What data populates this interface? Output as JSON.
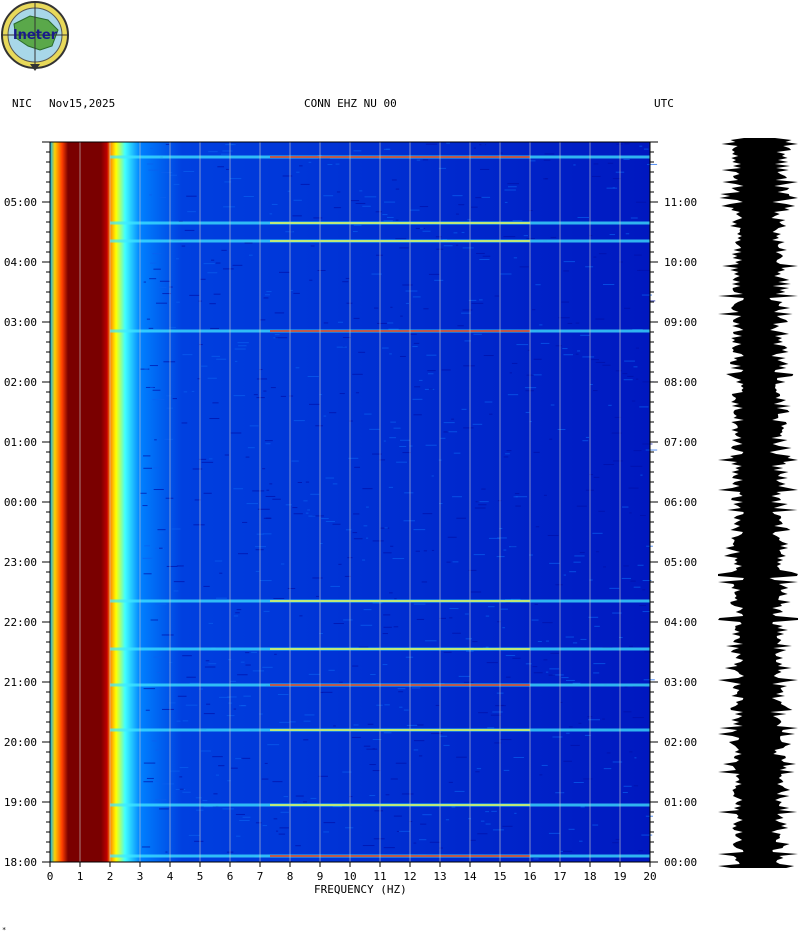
{
  "header": {
    "network": "NIC",
    "date": "Nov15,2025",
    "station": "CONN EHZ NU 00",
    "timezone": "UTC"
  },
  "logo": {
    "text": "Ineter"
  },
  "corner_mark": "*",
  "colors": {
    "background": "#0000c8",
    "band_low": "#7a0000",
    "band_mid": "#ff6000",
    "band_yellow": "#ffff00",
    "band_cyan": "#00e0ff",
    "grid": "#c8c8c8",
    "trace": "#000000"
  },
  "chart_data": {
    "type": "heatmap",
    "title": "",
    "xlabel": "FREQUENCY (HZ)",
    "xlim": [
      0,
      20
    ],
    "x_ticks": [
      "0",
      "1",
      "2",
      "3",
      "4",
      "5",
      "6",
      "7",
      "8",
      "9",
      "10",
      "11",
      "12",
      "13",
      "14",
      "15",
      "16",
      "17",
      "18",
      "19",
      "20"
    ],
    "left_time_ticks": [
      "18:00",
      "19:00",
      "20:00",
      "21:00",
      "22:00",
      "23:00",
      "00:00",
      "01:00",
      "02:00",
      "03:00",
      "04:00",
      "05:00"
    ],
    "right_time_ticks": [
      "00:00",
      "01:00",
      "02:00",
      "03:00",
      "04:00",
      "05:00",
      "06:00",
      "07:00",
      "08:00",
      "09:00",
      "10:00",
      "11:00"
    ],
    "time_span_hours": 12,
    "grid": true,
    "dominant_energy_hz": [
      0.4,
      2.0
    ],
    "strong_bands_hours_from_start": [
      0.1,
      0.95,
      2.2,
      2.95,
      3.55,
      4.35,
      8.85,
      10.35,
      10.65,
      11.75
    ],
    "right_panel": "seismic trace (amplitude)"
  }
}
